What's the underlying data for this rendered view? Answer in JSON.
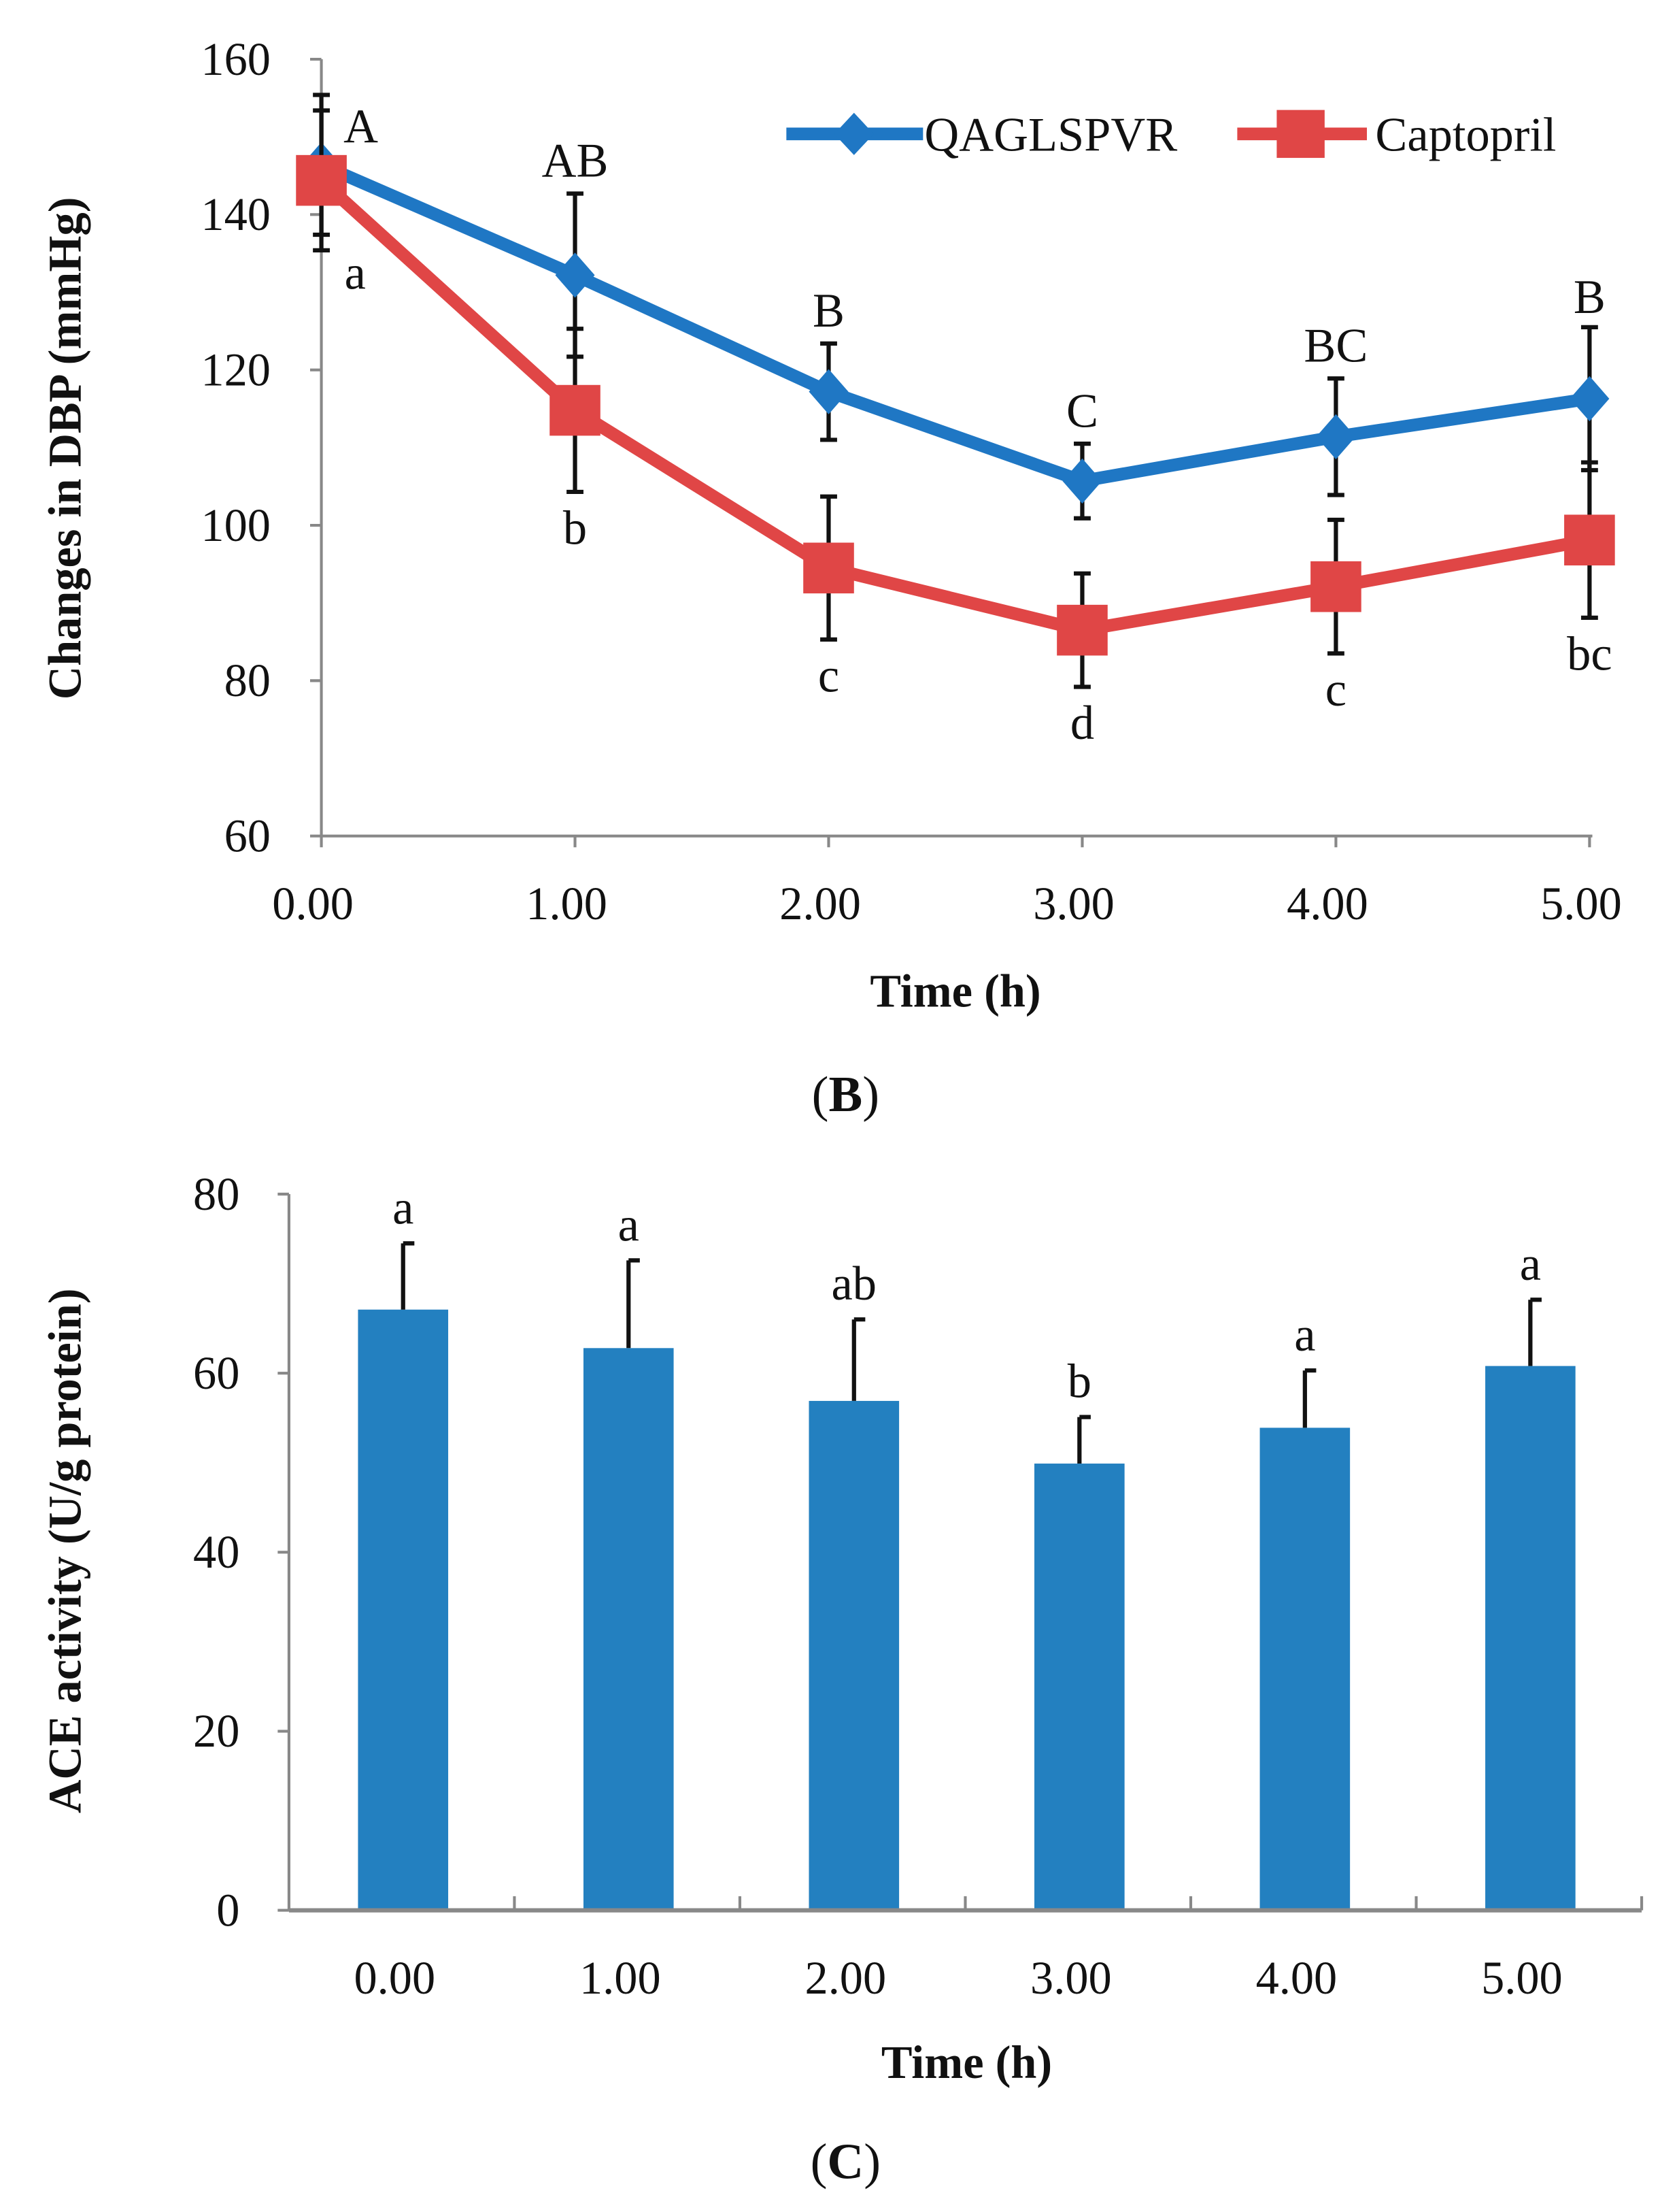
{
  "chart_data": [
    {
      "type": "line",
      "title": "",
      "panel_label_open": "(",
      "panel_label": "B",
      "panel_label_close": ")",
      "xlabel": "Time (h)",
      "ylabel": "Changes in DBP (mmHg)",
      "x": [
        0,
        1,
        2,
        3,
        4,
        5
      ],
      "x_tick_labels": [
        "0.00",
        "1.00",
        "2.00",
        "3.00",
        "4.00",
        "5.00"
      ],
      "y_tick_labels": [
        "60",
        "80",
        "100",
        "120",
        "140",
        "160"
      ],
      "ylim": [
        60,
        160
      ],
      "xlim": [
        0,
        5
      ],
      "legend_position": "top-right",
      "series": [
        {
          "name": "QAGLSPVR",
          "color": "#1f77c4",
          "marker": "diamond",
          "values": [
            146.4,
            132.2,
            117.2,
            105.7,
            111.4,
            116.3
          ],
          "error": [
            9,
            10.5,
            6.2,
            4.8,
            7.5,
            9.2
          ],
          "letters": [
            "A",
            "AB",
            "B",
            "C",
            "BC",
            "B"
          ]
        },
        {
          "name": "Captopril",
          "color": "#e04646",
          "marker": "square",
          "values": [
            144.4,
            114.8,
            94.5,
            86.5,
            92.1,
            98.1
          ],
          "error": [
            9,
            10.5,
            9.2,
            7.3,
            8.6,
            10
          ],
          "letters": [
            "a",
            "b",
            "c",
            "d",
            "c",
            "bc"
          ]
        }
      ]
    },
    {
      "type": "bar",
      "title": "",
      "panel_label_open": "(",
      "panel_label": "C",
      "panel_label_close": ")",
      "xlabel": "Time (h)",
      "ylabel": "ACE activity (U/g protein)",
      "categories": [
        "0.00",
        "1.00",
        "2.00",
        "3.00",
        "4.00",
        "5.00"
      ],
      "y_tick_labels": [
        "0",
        "20",
        "40",
        "60",
        "80"
      ],
      "ylim": [
        0,
        80
      ],
      "color": "#2380c0",
      "values": [
        67.1,
        62.8,
        56.9,
        49.9,
        53.9,
        60.8
      ],
      "error": [
        7.4,
        9.8,
        9.1,
        5.2,
        6.4,
        7.4
      ],
      "letters": [
        "a",
        "a",
        "ab",
        "b",
        "a",
        "a"
      ]
    }
  ]
}
